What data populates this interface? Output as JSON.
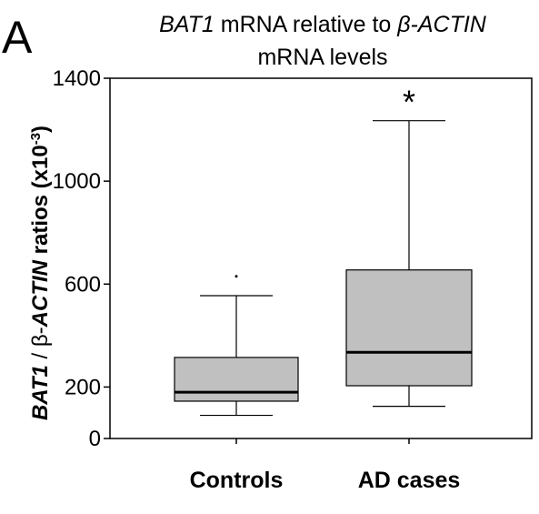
{
  "panel_label": "A",
  "title": {
    "line1_italic": "BAT1",
    "line1_mid": " mRNA relative to ",
    "line1_italic2": "β-ACTIN",
    "line2": "mRNA levels"
  },
  "y_axis_label": {
    "part1_italic": "BAT1",
    "part2": " / β-",
    "part3_italic": "ACTIN",
    "part4": " ratios (x10",
    "superscript": "-3",
    "part5": ")"
  },
  "significance_marker": "*",
  "chart_data": {
    "type": "box",
    "categories": [
      "Controls",
      "AD cases"
    ],
    "ylim": [
      0,
      1400
    ],
    "yticks": [
      0,
      200,
      600,
      1000,
      1400
    ],
    "boxes": [
      {
        "category": "Controls",
        "whisker_low": 90,
        "q1": 145,
        "median": 180,
        "q3": 315,
        "whisker_high": 555,
        "outliers": [
          630
        ]
      },
      {
        "category": "AD cases",
        "whisker_low": 125,
        "q1": 205,
        "median": 335,
        "q3": 655,
        "whisker_high": 1235,
        "outliers": []
      }
    ],
    "annotations": [
      {
        "category": "AD cases",
        "text": "*",
        "position": "above-whisker"
      }
    ],
    "colors": {
      "box_fill": "#c0c0c0",
      "stroke": "#000000"
    },
    "grid": false,
    "legend": "none"
  }
}
